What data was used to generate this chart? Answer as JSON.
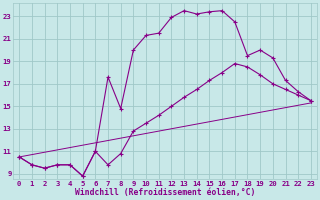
{
  "background_color": "#c8e8e8",
  "grid_color": "#a0c8c8",
  "line_color": "#880088",
  "xlim": [
    -0.5,
    23.5
  ],
  "ylim": [
    8.5,
    24.2
  ],
  "yticks": [
    9,
    11,
    13,
    15,
    17,
    19,
    21,
    23
  ],
  "xticks": [
    0,
    1,
    2,
    3,
    4,
    5,
    6,
    7,
    8,
    9,
    10,
    11,
    12,
    13,
    14,
    15,
    16,
    17,
    18,
    19,
    20,
    21,
    22,
    23
  ],
  "xlabel": "Windchill (Refroidissement éolien,°C)",
  "line1_x": [
    0,
    1,
    2,
    3,
    4,
    5,
    6,
    7,
    8,
    9,
    10,
    11,
    12,
    13,
    14,
    15,
    16,
    17,
    18,
    19,
    20,
    21,
    22,
    23
  ],
  "line1_y": [
    10.5,
    9.8,
    9.5,
    9.8,
    9.8,
    8.8,
    11.0,
    17.6,
    14.8,
    20.0,
    21.3,
    21.5,
    22.9,
    23.5,
    23.2,
    23.4,
    23.5,
    22.5,
    19.5,
    20.0,
    19.3,
    17.3,
    16.3,
    15.5
  ],
  "line2_x": [
    0,
    1,
    2,
    3,
    4,
    5,
    6,
    7,
    8,
    9,
    10,
    11,
    12,
    13,
    14,
    15,
    16,
    17,
    18,
    19,
    20,
    21,
    22,
    23
  ],
  "line2_y": [
    10.5,
    9.8,
    9.5,
    9.8,
    9.8,
    8.8,
    11.0,
    9.8,
    10.8,
    12.8,
    13.5,
    14.2,
    15.0,
    15.8,
    16.5,
    17.3,
    18.0,
    18.8,
    18.5,
    17.8,
    17.0,
    16.5,
    16.0,
    15.5
  ],
  "line3_x": [
    0,
    23
  ],
  "line3_y": [
    10.5,
    15.3
  ]
}
